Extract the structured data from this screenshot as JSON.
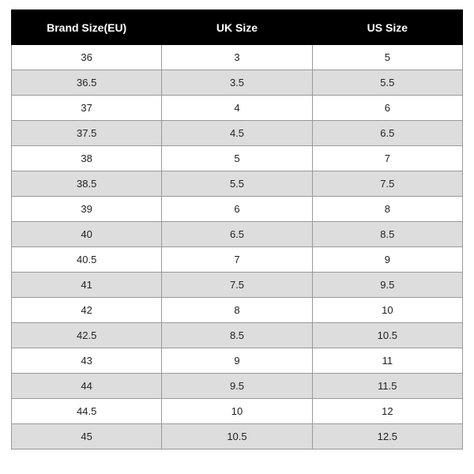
{
  "sizeChart": {
    "type": "table",
    "header_bg": "#000000",
    "header_fg": "#ffffff",
    "row_bg_odd": "#ffffff",
    "row_bg_even": "#dddddd",
    "border_color": "#999999",
    "text_color": "#222222",
    "header_fontsize": 14,
    "cell_fontsize": 13,
    "columns": [
      {
        "label": "Brand Size(EU)"
      },
      {
        "label": "UK Size"
      },
      {
        "label": "US Size"
      }
    ],
    "rows": [
      [
        "36",
        "3",
        "5"
      ],
      [
        "36.5",
        "3.5",
        "5.5"
      ],
      [
        "37",
        "4",
        "6"
      ],
      [
        "37.5",
        "4.5",
        "6.5"
      ],
      [
        "38",
        "5",
        "7"
      ],
      [
        "38.5",
        "5.5",
        "7.5"
      ],
      [
        "39",
        "6",
        "8"
      ],
      [
        "40",
        "6.5",
        "8.5"
      ],
      [
        "40.5",
        "7",
        "9"
      ],
      [
        "41",
        "7.5",
        "9.5"
      ],
      [
        "42",
        "8",
        "10"
      ],
      [
        "42.5",
        "8.5",
        "10.5"
      ],
      [
        "43",
        "9",
        "11"
      ],
      [
        "44",
        "9.5",
        "11.5"
      ],
      [
        "44.5",
        "10",
        "12"
      ],
      [
        "45",
        "10.5",
        "12.5"
      ]
    ]
  }
}
